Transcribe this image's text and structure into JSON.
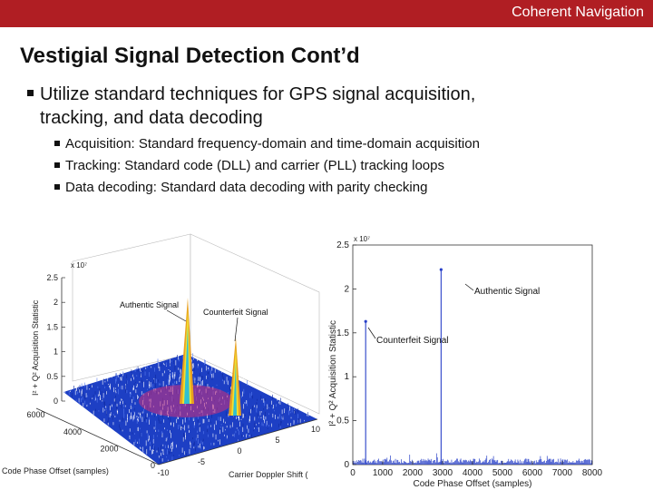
{
  "header": {
    "brand": "Coherent Navigation",
    "color": "#b01e23"
  },
  "slide": {
    "title": "Vestigial Signal Detection Cont’d",
    "bullet_line1": "Utilize standard techniques for GPS signal acquisition,",
    "bullet_line2": "tracking, and data decoding",
    "sub_bullets": [
      "Acquisition: Standard frequency-domain and time-domain acquisition",
      "Tracking: Standard code (DLL) and carrier (PLL) tracking loops",
      "Data decoding: Standard data decoding with parity checking"
    ]
  },
  "figure_left": {
    "ylabel": "I² + Q² Acquisition Statistic",
    "exponent": "x 10⁷",
    "z_ticks": [
      "0",
      "0.5",
      "1",
      "1.5",
      "2",
      "2.5"
    ],
    "code_ticks": [
      "6000",
      "4000",
      "2000",
      "0"
    ],
    "doppler_ticks": [
      "10",
      "5",
      "0",
      "-5",
      "-10"
    ],
    "xlabel_code": "Code Phase Offset (samples)",
    "xlabel_doppler": "Carrier Doppler Shift (",
    "annotations": [
      "Authentic Signal",
      "Counterfeit Signal"
    ]
  },
  "chart_data": {
    "type": "line",
    "xlabel": "Code Phase Offset (samples)",
    "ylabel": "I² + Q² Acquisition Statistic",
    "exponent_label": "x 10⁷",
    "xlim": [
      0,
      8000
    ],
    "ylim": [
      0,
      2.5
    ],
    "x_ticks": [
      0,
      1000,
      2000,
      3000,
      4000,
      5000,
      6000,
      7000,
      8000
    ],
    "y_ticks": [
      0,
      0.5,
      1,
      1.5,
      2,
      2.5
    ],
    "grid": false,
    "color": "#2840c8",
    "peaks": [
      {
        "label": "Authentic Signal",
        "x": 2950,
        "y": 2.22
      },
      {
        "label": "Counterfeit Signal",
        "x": 430,
        "y": 1.63
      }
    ],
    "noise_floor": 0.05
  }
}
